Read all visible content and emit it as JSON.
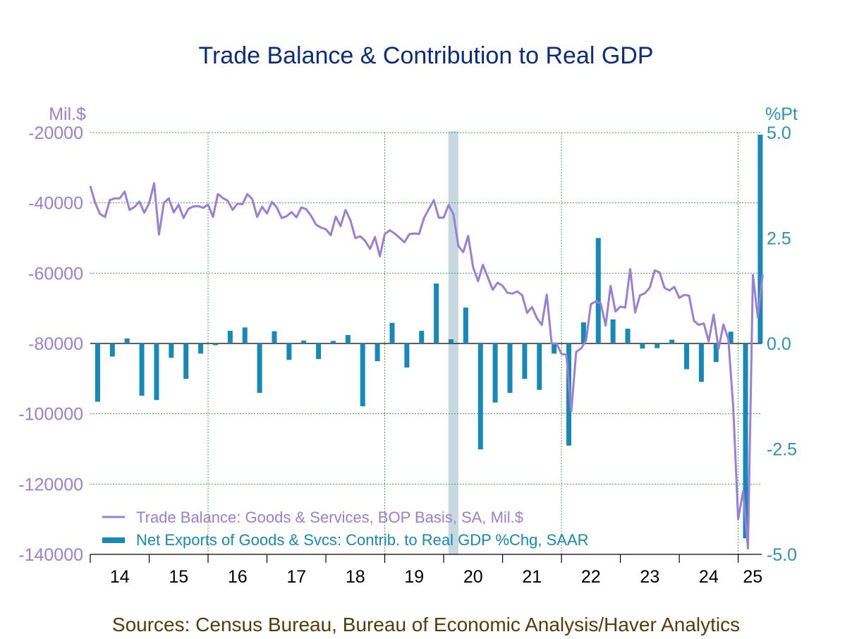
{
  "chart_data": {
    "type": "bar+line",
    "title": "Trade Balance & Contribution to Real GDP",
    "left_unit": "Mil.$",
    "right_unit": "%Pt",
    "left_ylim": [
      -140000,
      -20000
    ],
    "right_ylim": [
      -5.0,
      5.0
    ],
    "left_ticks": [
      "-20000",
      "-40000",
      "-60000",
      "-80000",
      "-100000",
      "-120000",
      "-140000"
    ],
    "left_tick_values": [
      -20000,
      -40000,
      -60000,
      -80000,
      -100000,
      -120000,
      -140000
    ],
    "right_ticks": [
      "5.0",
      "2.5",
      "0.0",
      "-2.5",
      "-5.0"
    ],
    "right_tick_values": [
      5.0,
      2.5,
      0.0,
      -2.5,
      -5.0
    ],
    "x_labels": [
      "14",
      "15",
      "16",
      "17",
      "18",
      "19",
      "20",
      "21",
      "22",
      "23",
      "24",
      "25"
    ],
    "x_range": [
      2014.0,
      2025.4
    ],
    "grid": "on",
    "recession_shading": [
      2020.08,
      2020.25
    ],
    "legend_position": "bottom-left",
    "colors": {
      "title": "#0c2e7a",
      "line": "#9a7fd6",
      "bars": "#1789b8",
      "right_axis": "#2a94b8",
      "grid": "#3ea83e",
      "recession": "#c8d8e0",
      "source": "#5a3a0a"
    },
    "series": [
      {
        "name": "Trade Balance: Goods & Services, BOP Basis, SA, Mil.$",
        "axis": "left",
        "kind": "line",
        "start": 2014.0,
        "step": 0.0833333,
        "values": [
          -35200,
          -40000,
          -43200,
          -44000,
          -39200,
          -38700,
          -38700,
          -36800,
          -42000,
          -41200,
          -39600,
          -42800,
          -40100,
          -34400,
          -49000,
          -40000,
          -38700,
          -42700,
          -40500,
          -44300,
          -41700,
          -41000,
          -40900,
          -41400,
          -40500,
          -44000,
          -37500,
          -38600,
          -39400,
          -42000,
          -40200,
          -40400,
          -37500,
          -38900,
          -44000,
          -41100,
          -43000,
          -39700,
          -41300,
          -44300,
          -43800,
          -42600,
          -44100,
          -41300,
          -41800,
          -43700,
          -46200,
          -47000,
          -47500,
          -49200,
          -43900,
          -46600,
          -42000,
          -44900,
          -50000,
          -49500,
          -50800,
          -53100,
          -49700,
          -55200,
          -48900,
          -47800,
          -48700,
          -49900,
          -51200,
          -48900,
          -48700,
          -48800,
          -44300,
          -41700,
          -39200,
          -44200,
          -44200,
          -40600,
          -43300,
          -52300,
          -54000,
          -49400,
          -58300,
          -62300,
          -57600,
          -61200,
          -64700,
          -62700,
          -63600,
          -65600,
          -65800,
          -65200,
          -66300,
          -71300,
          -69600,
          -72800,
          -74700,
          -66100,
          -80000,
          -80000,
          -83000,
          -83200,
          -99300,
          -82400,
          -81400,
          -79200,
          -68800,
          -68000,
          -68600,
          -74900,
          -63600,
          -70900,
          -69500,
          -69800,
          -58800,
          -71200,
          -66300,
          -65700,
          -64100,
          -59200,
          -59800,
          -64200,
          -64900,
          -63900,
          -67000,
          -66200,
          -66400,
          -73600,
          -74700,
          -74300,
          -79400,
          -71800,
          -81500,
          -74600,
          -78800,
          -98100,
          -130000,
          -122000,
          -138300,
          -60500,
          -72500,
          -60300
        ]
      },
      {
        "name": "Net Exports of Goods & Svcs: Contrib. to Real GDP %Chg, SAAR",
        "axis": "right",
        "kind": "bar",
        "start": 2014.125,
        "step": 0.25,
        "values": [
          -1.38,
          -0.31,
          0.12,
          -1.24,
          -1.34,
          -0.34,
          -0.84,
          -0.24,
          -0.04,
          0.3,
          0.38,
          -1.17,
          0.29,
          -0.39,
          0.07,
          -0.37,
          0.06,
          0.2,
          -1.49,
          -0.42,
          0.49,
          -0.57,
          0.3,
          1.42,
          0.1,
          0.85,
          -2.51,
          -1.4,
          -1.17,
          -0.84,
          -1.1,
          -0.24,
          -2.42,
          0.5,
          2.5,
          0.57,
          0.35,
          -0.12,
          -0.11,
          0.09,
          -0.61,
          -0.91,
          -0.44,
          0.28,
          -4.62,
          4.95
        ]
      }
    ],
    "source": "Sources:  Census Bureau, Bureau of Economic Analysis/Haver Analytics"
  }
}
